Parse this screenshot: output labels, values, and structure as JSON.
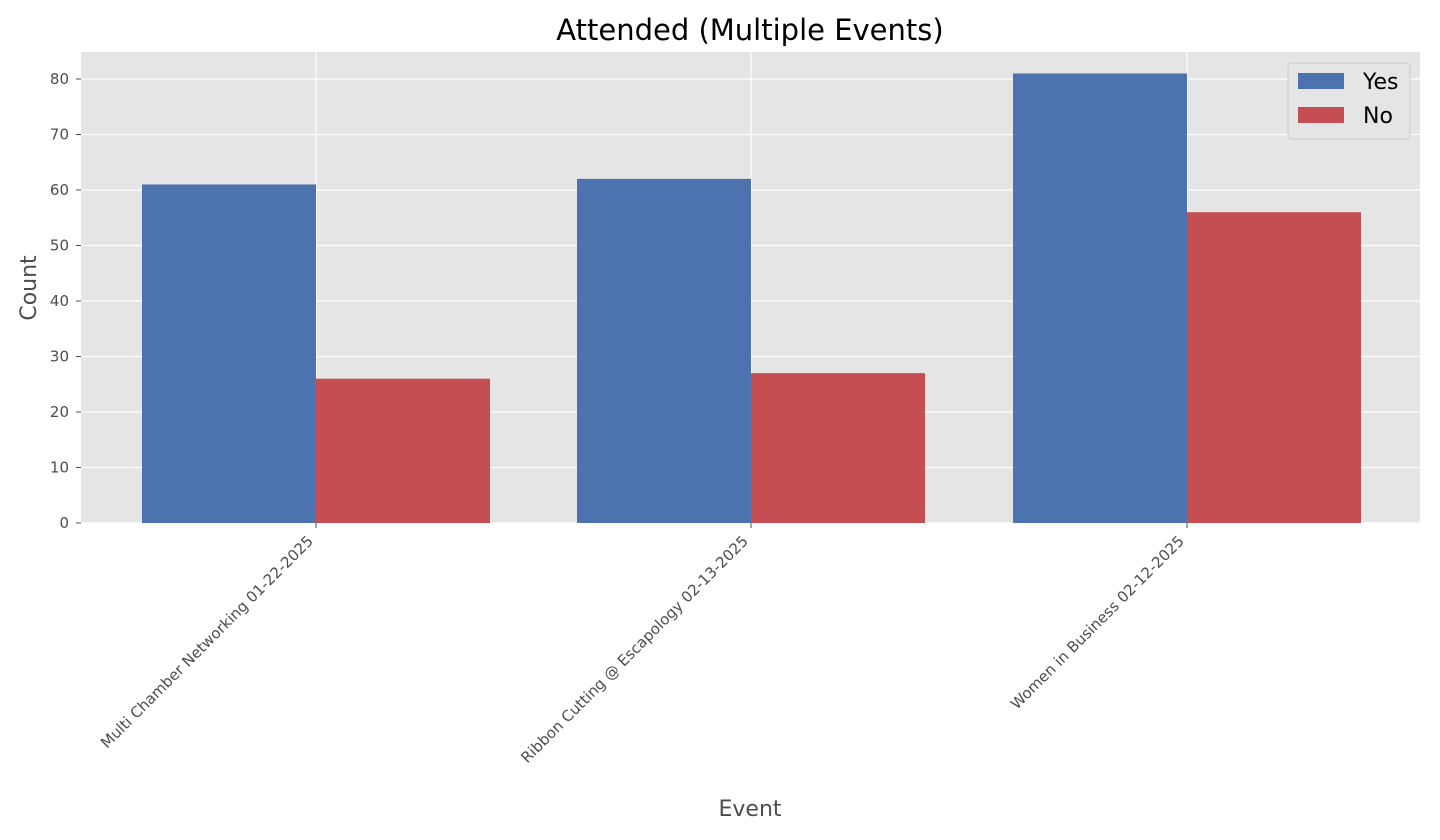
{
  "chart_data": {
    "type": "bar",
    "title": "Attended (Multiple Events)",
    "xlabel": "Event",
    "ylabel": "Count",
    "categories": [
      "Multi Chamber Networking 01-22-2025",
      "Ribbon Cutting @ Escapology 02-13-2025",
      "Women in Business 02-12-2025"
    ],
    "series": [
      {
        "name": "Yes",
        "color": "#4c72b0",
        "values": [
          61,
          62,
          81
        ]
      },
      {
        "name": "No",
        "color": "#c44e52",
        "values": [
          26,
          27,
          56
        ]
      }
    ],
    "yticks": [
      "0",
      "10",
      "20",
      "30",
      "40",
      "50",
      "60",
      "70",
      "80"
    ],
    "ylim": [
      0,
      85
    ],
    "grid": true,
    "legend_position": "top-right",
    "plot_background": "#e5e5e5"
  }
}
